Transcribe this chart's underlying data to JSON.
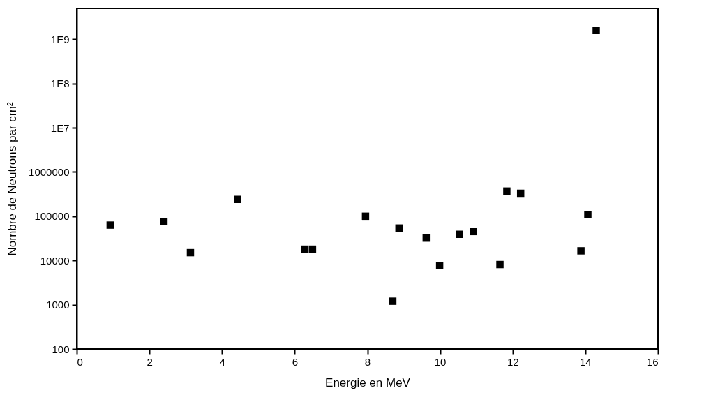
{
  "chart_data": {
    "type": "scatter",
    "xlabel": "Energie en MeV",
    "ylabel": "Nombre de Neutrons par cm²",
    "x": [
      0.92,
      2.4,
      3.13,
      4.43,
      6.28,
      6.49,
      7.95,
      8.7,
      8.87,
      9.62,
      9.99,
      10.54,
      10.92,
      11.65,
      11.84,
      12.22,
      13.88,
      14.07,
      14.3
    ],
    "series": [
      {
        "color": "#000000",
        "values": [
          63000,
          76000,
          15000,
          240000,
          18000,
          18000,
          100000,
          1200,
          54000,
          32000,
          7700,
          39000,
          45000,
          8100,
          370000,
          330000,
          16500,
          110000,
          1600000000
        ]
      }
    ],
    "log": "y",
    "marker": "square",
    "grid": false,
    "legend": false,
    "xlim": [
      0,
      16
    ],
    "xticks": [
      0,
      2,
      4,
      6,
      8,
      10,
      12,
      14,
      16
    ],
    "ylim": [
      100,
      5000000000
    ],
    "yticks": [
      100,
      1000,
      10000,
      100000,
      1000000,
      {
        "value": 10000000,
        "label": "1E7"
      },
      {
        "value": 100000000,
        "label": "1E8"
      },
      {
        "value": 1000000000,
        "label": "1E9"
      }
    ]
  }
}
